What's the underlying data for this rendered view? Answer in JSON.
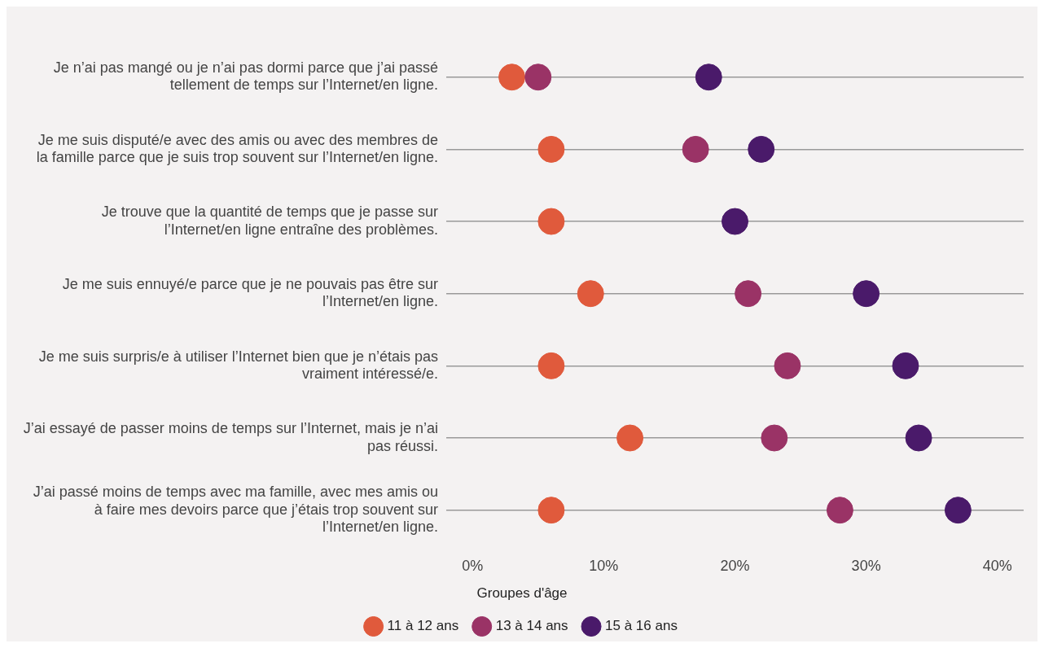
{
  "chart_data": {
    "type": "scatter",
    "orientation": "horizontal",
    "categories": [
      "Je n’ai pas mangé ou je n’ai pas dormi parce que j’ai passé tellement de temps sur l’Internet/en ligne.",
      "Je me suis disputé/e avec des amis ou avec des membres de la famille parce que je suis trop souvent sur l’Internet/en ligne.",
      "Je trouve que la quantité de temps que je passe sur l’Internet/en ligne entraîne des problèmes.",
      "Je me suis ennuyé/e parce que je ne pouvais pas être sur l’Internet/en ligne.",
      "Je me suis surpris/e à utiliser l’Internet bien que je n’étais pas vraiment intéressé/e.",
      "J’ai essayé de passer moins de temps sur l’Internet, mais je n’ai pas réussi.",
      "J’ai passé moins de temps avec ma famille, avec mes amis ou à faire mes devoirs parce que j’étais trop souvent sur l’Internet/en ligne."
    ],
    "series": [
      {
        "name": "11 à 12 ans",
        "color": "#e05a3c",
        "values": [
          3,
          6,
          6,
          9,
          6,
          12,
          6
        ]
      },
      {
        "name": "13 à 14 ans",
        "color": "#9a3366",
        "values": [
          5,
          17,
          null,
          21,
          24,
          23,
          28
        ]
      },
      {
        "name": "15 à 16 ans",
        "color": "#4a1a6a",
        "values": [
          18,
          22,
          20,
          30,
          33,
          34,
          37
        ]
      }
    ],
    "xlim": [
      -2,
      42
    ],
    "xticks": [
      {
        "value": 0,
        "label": "0%"
      },
      {
        "value": 10,
        "label": "10%"
      },
      {
        "value": 20,
        "label": "20%"
      },
      {
        "value": 30,
        "label": "30%"
      },
      {
        "value": 40,
        "label": "40%"
      }
    ],
    "legend_title": "Groupes d'âge",
    "legend": "bottom",
    "grid": "y",
    "marker": "circle"
  }
}
